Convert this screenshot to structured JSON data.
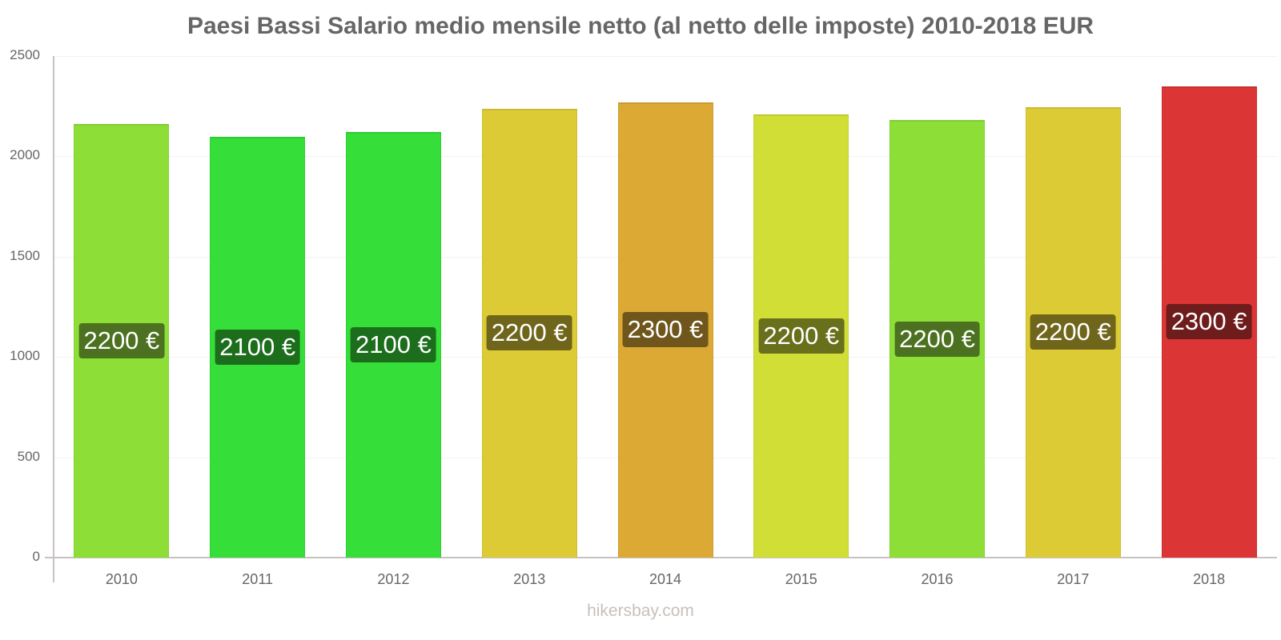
{
  "chart_data": {
    "type": "bar",
    "title": "Paesi Bassi Salario medio mensile netto (al netto delle imposte) 2010-2018 EUR",
    "xlabel": "",
    "ylabel": "",
    "ylim": [
      0,
      2500
    ],
    "yticks": [
      0,
      500,
      1000,
      1500,
      2000,
      2500
    ],
    "grid": true,
    "legend": "none",
    "categories": [
      "2010",
      "2011",
      "2012",
      "2013",
      "2014",
      "2015",
      "2016",
      "2017",
      "2018"
    ],
    "values": [
      2161,
      2097,
      2121,
      2237,
      2269,
      2209,
      2181,
      2245,
      2349
    ],
    "data_labels": [
      "2200 €",
      "2100 €",
      "2100 €",
      "2200 €",
      "2300 €",
      "2200 €",
      "2200 €",
      "2200 €",
      "2300 €"
    ],
    "bar_colors": [
      "#8ddf37",
      "#35de38",
      "#35de38",
      "#dccb35",
      "#dca935",
      "#d0de35",
      "#8ddf37",
      "#dccb35",
      "#dc3535"
    ],
    "label_colors": [
      "#4c7120",
      "#1c6e1c",
      "#1c6e1c",
      "#6f661c",
      "#6f561c",
      "#68701c",
      "#4c7120",
      "#6f661c",
      "#6f1c1c"
    ]
  },
  "watermark": "hikersbay.com"
}
